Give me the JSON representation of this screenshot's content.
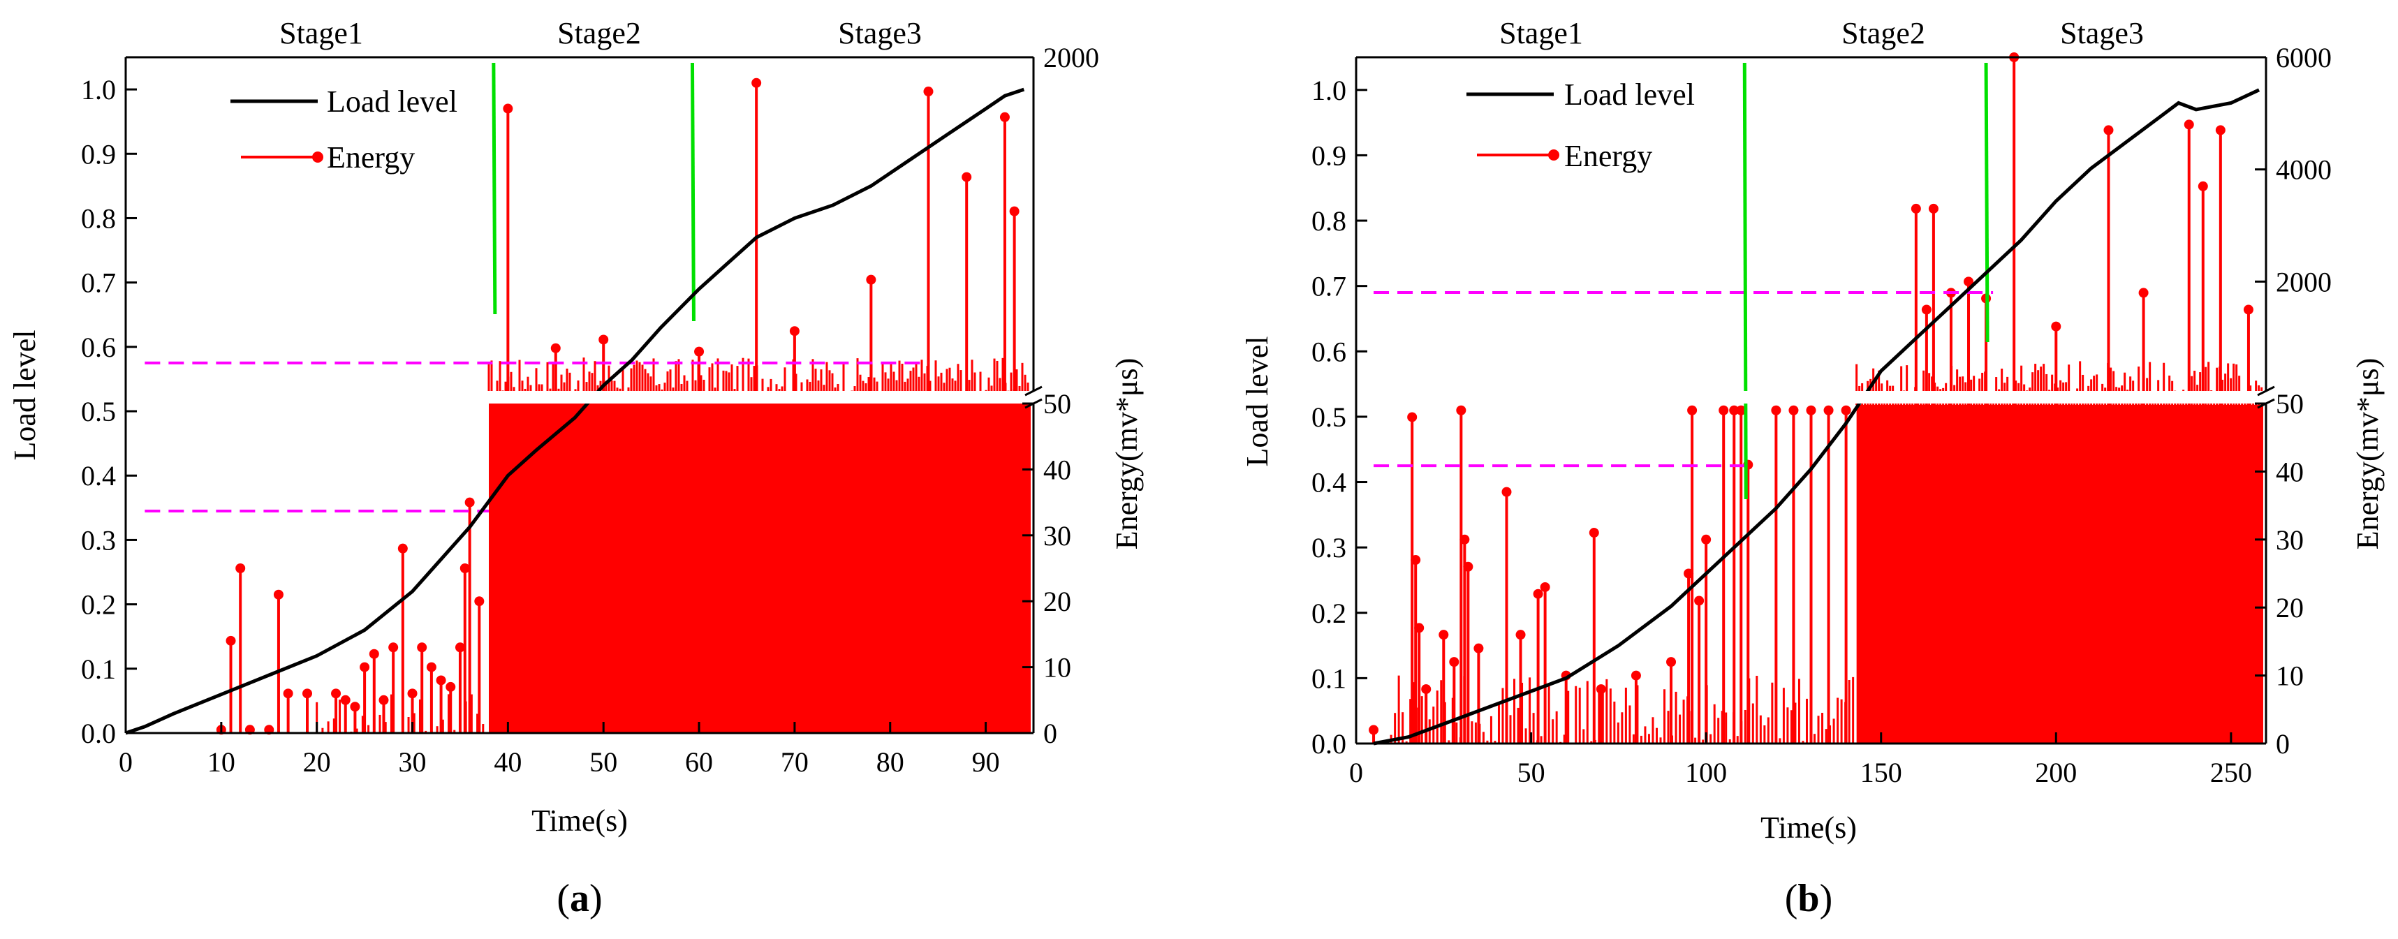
{
  "chart_data": [
    {
      "type": "line",
      "panel_label": "a",
      "stages": [
        "Stage1",
        "Stage2",
        "Stage3"
      ],
      "xlabel": "Time(s)",
      "ylabel_left": "Load level",
      "ylabel_right": "Energy(mv*μs)",
      "xlim": [
        0,
        95
      ],
      "xticks": [
        0,
        10,
        20,
        30,
        40,
        50,
        60,
        70,
        80,
        90
      ],
      "ylim_left": [
        0,
        1.05
      ],
      "yticks_left": [
        0.0,
        0.1,
        0.2,
        0.3,
        0.4,
        0.5,
        0.6,
        0.7,
        0.8,
        0.9,
        1.0
      ],
      "energy_axis_break": {
        "lower": [
          0,
          50
        ],
        "upper": [
          50,
          2000
        ]
      },
      "energy_ticks_lower": [
        0,
        10,
        20,
        30,
        40,
        50
      ],
      "energy_ticks_upper": [
        2000
      ],
      "legend": {
        "position": "top-left",
        "entries": [
          "Load level",
          "Energy"
        ]
      },
      "series": [
        {
          "name": "Load level",
          "color": "#000000",
          "x": [
            0,
            2,
            5,
            10,
            15,
            20,
            25,
            30,
            33,
            36,
            38,
            40,
            43,
            47,
            50,
            53,
            56,
            60,
            63,
            66,
            70,
            74,
            78,
            82,
            86,
            90,
            92,
            94
          ],
          "y": [
            0.0,
            0.01,
            0.03,
            0.06,
            0.09,
            0.12,
            0.16,
            0.22,
            0.27,
            0.32,
            0.36,
            0.4,
            0.44,
            0.49,
            0.54,
            0.58,
            0.63,
            0.69,
            0.73,
            0.77,
            0.8,
            0.82,
            0.85,
            0.89,
            0.93,
            0.97,
            0.99,
            1.0
          ]
        },
        {
          "name": "Energy",
          "color": "#ff0000",
          "x": [
            10,
            11,
            12,
            13,
            15,
            16,
            17,
            19,
            22,
            23,
            24,
            25,
            26,
            27,
            28,
            29,
            30,
            31,
            32,
            33,
            34,
            35,
            35.5,
            36,
            37,
            40,
            45,
            50,
            60,
            66,
            70,
            78,
            84,
            88,
            92,
            93
          ],
          "y": [
            0.5,
            14,
            25,
            0.5,
            0.5,
            21,
            6,
            6,
            6,
            5,
            4,
            10,
            12,
            5,
            13,
            28,
            6,
            13,
            10,
            8,
            7,
            13,
            25,
            35,
            20,
            1700,
            300,
            350,
            280,
            1850,
            400,
            700,
            1800,
            1300,
            1650,
            1100
          ]
        }
      ],
      "reference_lines": [
        {
          "style": "dashed",
          "color": "#ff00ff",
          "x": [
            2,
            38
          ],
          "y": 0.345
        },
        {
          "style": "dashed",
          "color": "#ff00ff",
          "x": [
            2,
            84
          ],
          "y": 0.575
        }
      ],
      "stage_boundaries": [
        {
          "color": "#00e000",
          "x": 38.5
        },
        {
          "color": "#00e000",
          "x": 59.3
        }
      ]
    },
    {
      "type": "line",
      "panel_label": "b",
      "stages": [
        "Stage1",
        "Stage2",
        "Stage3"
      ],
      "xlabel": "Time(s)",
      "ylabel_left": "Load level",
      "ylabel_right": "Energy(mv*μs)",
      "xlim": [
        0,
        260
      ],
      "xticks": [
        0,
        50,
        100,
        150,
        200,
        250
      ],
      "ylim_left": [
        0,
        1.05
      ],
      "yticks_left": [
        0.0,
        0.1,
        0.2,
        0.3,
        0.4,
        0.5,
        0.6,
        0.7,
        0.8,
        0.9,
        1.0
      ],
      "energy_axis_break": {
        "lower": [
          0,
          50
        ],
        "upper": [
          50,
          6000
        ]
      },
      "energy_ticks_lower": [
        0,
        10,
        20,
        30,
        40,
        50
      ],
      "energy_ticks_upper": [
        2000,
        4000,
        6000
      ],
      "legend": {
        "position": "top-left",
        "entries": [
          "Load level",
          "Energy"
        ]
      },
      "series": [
        {
          "name": "Load level",
          "color": "#000000",
          "x": [
            5,
            15,
            30,
            45,
            60,
            75,
            90,
            100,
            110,
            120,
            130,
            140,
            150,
            160,
            170,
            180,
            190,
            200,
            210,
            220,
            230,
            235,
            240,
            250,
            258
          ],
          "y": [
            0.0,
            0.01,
            0.04,
            0.07,
            0.1,
            0.15,
            0.21,
            0.26,
            0.31,
            0.36,
            0.42,
            0.49,
            0.57,
            0.62,
            0.67,
            0.72,
            0.77,
            0.83,
            0.88,
            0.92,
            0.96,
            0.98,
            0.97,
            0.98,
            1.0
          ]
        },
        {
          "name": "Energy",
          "color": "#ff0000",
          "x": [
            5,
            16,
            17,
            18,
            20,
            25,
            28,
            30,
            31,
            32,
            35,
            43,
            47,
            52,
            54,
            60,
            68,
            70,
            80,
            90,
            95,
            96,
            98,
            100,
            105,
            108,
            110,
            112,
            120,
            125,
            130,
            135,
            140,
            160,
            163,
            165,
            170,
            175,
            180,
            188,
            200,
            215,
            225,
            238,
            242,
            247,
            255
          ],
          "y": [
            2,
            48,
            27,
            17,
            8,
            16,
            12,
            49,
            30,
            26,
            14,
            37,
            16,
            22,
            23,
            10,
            31,
            8,
            10,
            12,
            25,
            49,
            21,
            30,
            49,
            49,
            49,
            41,
            49,
            49,
            49,
            49,
            49,
            3300,
            1500,
            3300,
            1800,
            2000,
            1700,
            6000,
            1200,
            4700,
            1800,
            4800,
            3700,
            4700,
            1500
          ]
        }
      ],
      "reference_lines": [
        {
          "style": "dashed",
          "color": "#ff00ff",
          "x": [
            5,
            111
          ],
          "y": 0.425
        },
        {
          "style": "dashed",
          "color": "#ff00ff",
          "x": [
            5,
            182
          ],
          "y": 0.69
        }
      ],
      "stage_boundaries": [
        {
          "color": "#00e000",
          "x": 111
        },
        {
          "color": "#00e000",
          "x": 180
        }
      ]
    }
  ]
}
